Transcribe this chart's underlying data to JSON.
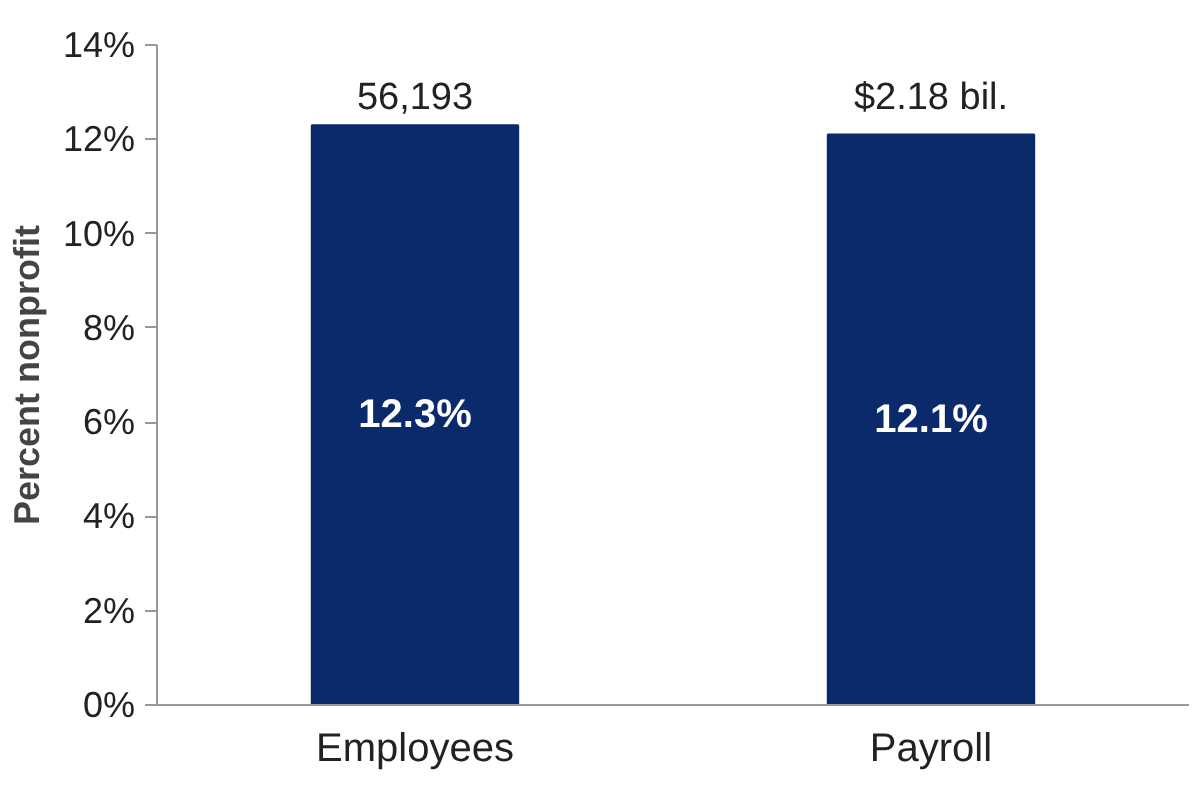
{
  "chart_data": {
    "type": "bar",
    "ylabel": "Percent nonprofit",
    "categories": [
      "Employees",
      "Payroll"
    ],
    "values": [
      12.3,
      12.1
    ],
    "color": "#0b2a6b",
    "value_labels": [
      "12.3%",
      "12.1%"
    ],
    "ylim": [
      0,
      14
    ],
    "yticks": [
      {
        "value": 0,
        "label": "0%"
      },
      {
        "value": 2,
        "label": "2%"
      },
      {
        "value": 4,
        "label": "4%"
      },
      {
        "value": 6,
        "label": "6%"
      },
      {
        "value": 8,
        "label": "8%"
      },
      {
        "value": 10,
        "label": "10%"
      },
      {
        "value": 12,
        "label": "12%"
      },
      {
        "value": 14,
        "label": "14%"
      }
    ],
    "annotations": [
      {
        "text": "56,193",
        "x": "Employees",
        "y": 12.3
      },
      {
        "text": "$2.18 bil.",
        "x": "Payroll",
        "y": 12.1
      }
    ],
    "grid": false
  }
}
